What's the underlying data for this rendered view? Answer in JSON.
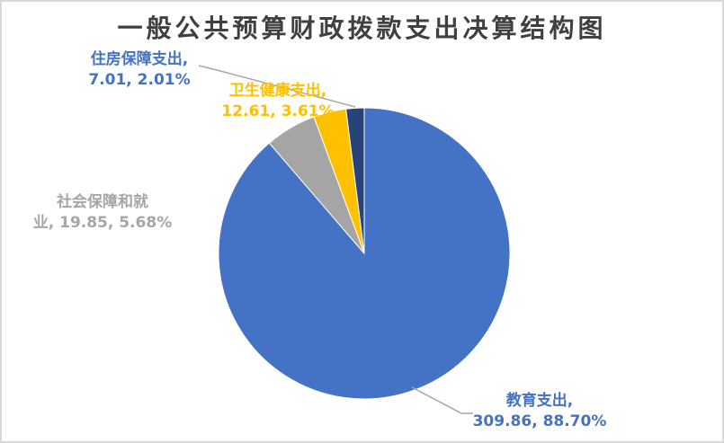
{
  "title": "一般公共预算财政拨款支出决算结构图",
  "title_color": "#404040",
  "frame_border_color": "#D9D9D9",
  "leader_line_color": "#A6A6A6",
  "chart_data": {
    "type": "pie",
    "title": "一般公共预算财政拨款支出决算结构图",
    "categories": [
      "教育支出",
      "社会保障和就业",
      "卫生健康支出",
      "住房保障支出"
    ],
    "values": [
      309.86,
      19.85,
      12.61,
      7.01
    ],
    "percentages": [
      "88.70%",
      "5.68%",
      "3.61%",
      "2.01%"
    ],
    "colors": [
      "#4472C4",
      "#A5A5A5",
      "#FFC000",
      "#264478"
    ],
    "start_angle_deg": 0,
    "direction": "clockwise",
    "legend": "none",
    "label_format": "category, value, percent",
    "data_labels": [
      {
        "category": "教育支出",
        "line1": "教育支出,",
        "line2": "309.86, 88.70%",
        "color": "#4472C4",
        "position": "bottom-right",
        "leader_line": true
      },
      {
        "category": "社会保障和就业",
        "line1": "社会保障和就",
        "line2": "业, 19.85, 5.68%",
        "color": "#A6A6A6",
        "position": "left",
        "leader_line": false
      },
      {
        "category": "卫生健康支出",
        "line1": "卫生健康支出,",
        "line2": "12.61, 3.61%",
        "color": "#FFC000",
        "position": "top",
        "leader_line": false
      },
      {
        "category": "住房保障支出",
        "line1": "住房保障支出,",
        "line2": "7.01, 2.01%",
        "color": "#4472C4",
        "position": "top-left",
        "leader_line": true
      }
    ]
  }
}
